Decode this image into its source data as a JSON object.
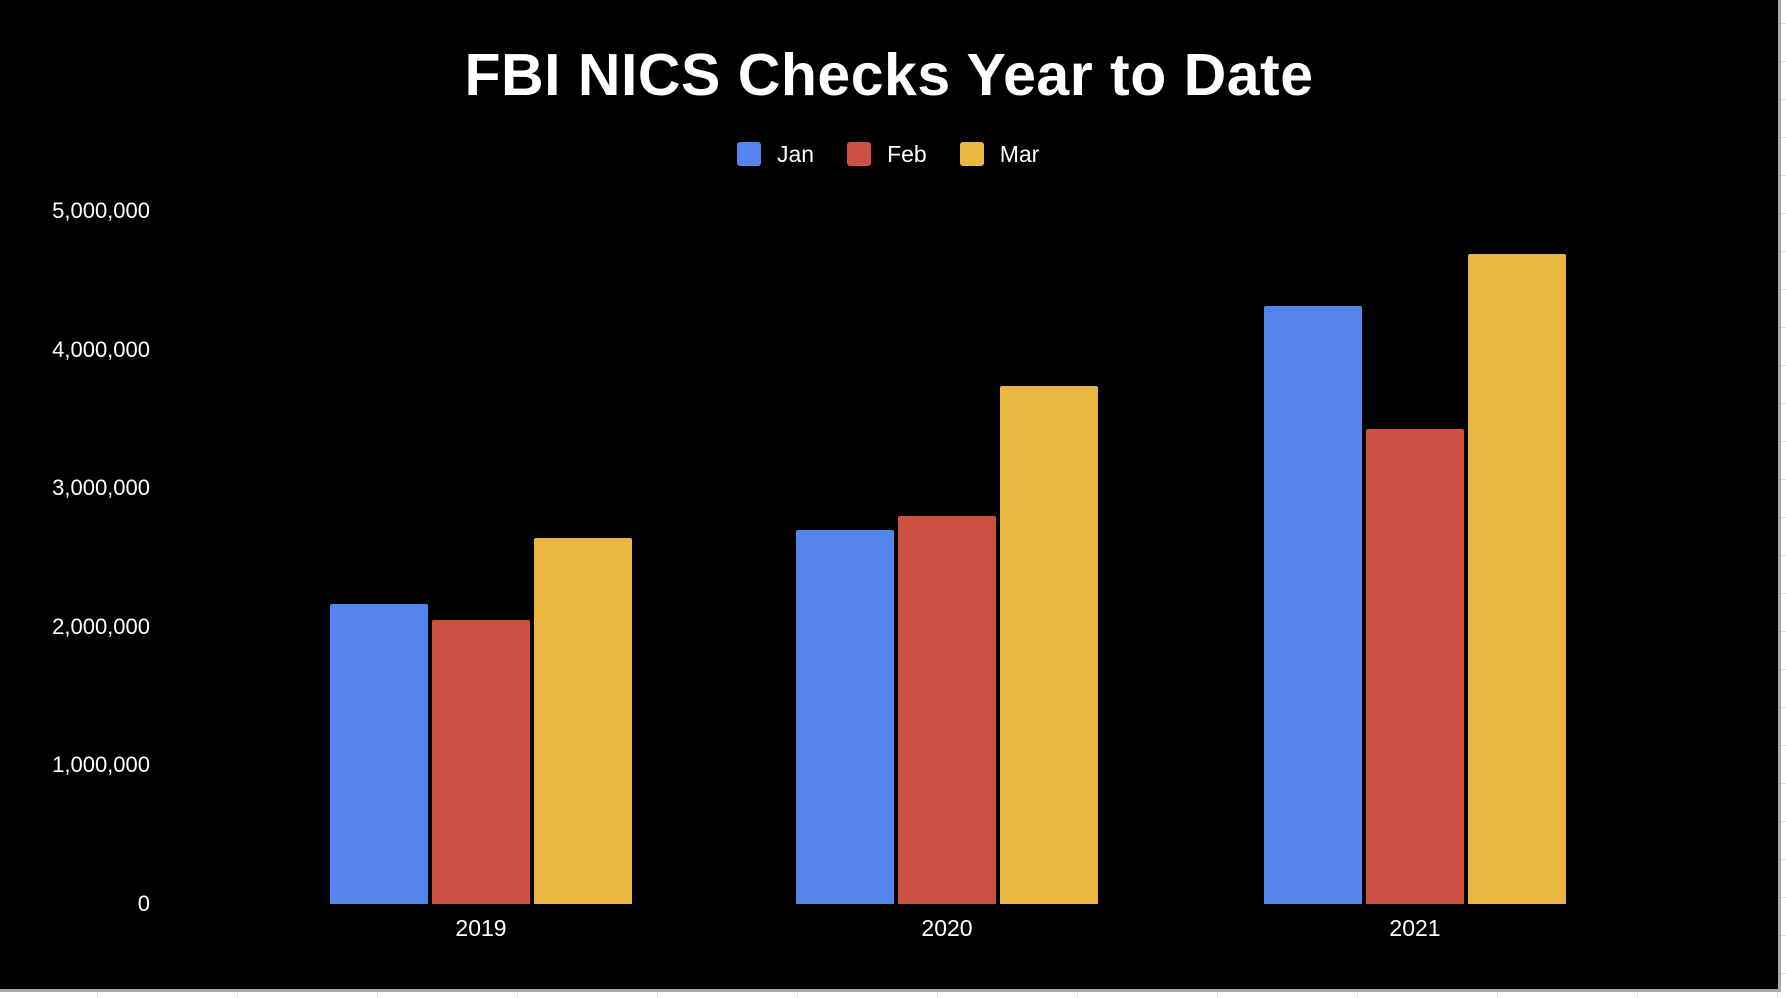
{
  "chart_data": {
    "type": "bar",
    "title": "FBI NICS Checks Year to Date",
    "xlabel": "",
    "ylabel": "",
    "categories": [
      "2019",
      "2020",
      "2021"
    ],
    "series": [
      {
        "name": "Jan",
        "color": "#5485EC",
        "values": [
          2165000,
          2700000,
          4320000
        ]
      },
      {
        "name": "Feb",
        "color": "#CC5142",
        "values": [
          2050000,
          2800000,
          3430000
        ]
      },
      {
        "name": "Mar",
        "color": "#E9B640",
        "values": [
          2640000,
          3740000,
          4690000
        ]
      }
    ],
    "y_ticks": [
      "0",
      "1,000,000",
      "2,000,000",
      "3,000,000",
      "4,000,000",
      "5,000,000"
    ],
    "ylim": [
      0,
      5000000
    ],
    "grid": false,
    "legend_position": "top",
    "background": "#000000"
  }
}
